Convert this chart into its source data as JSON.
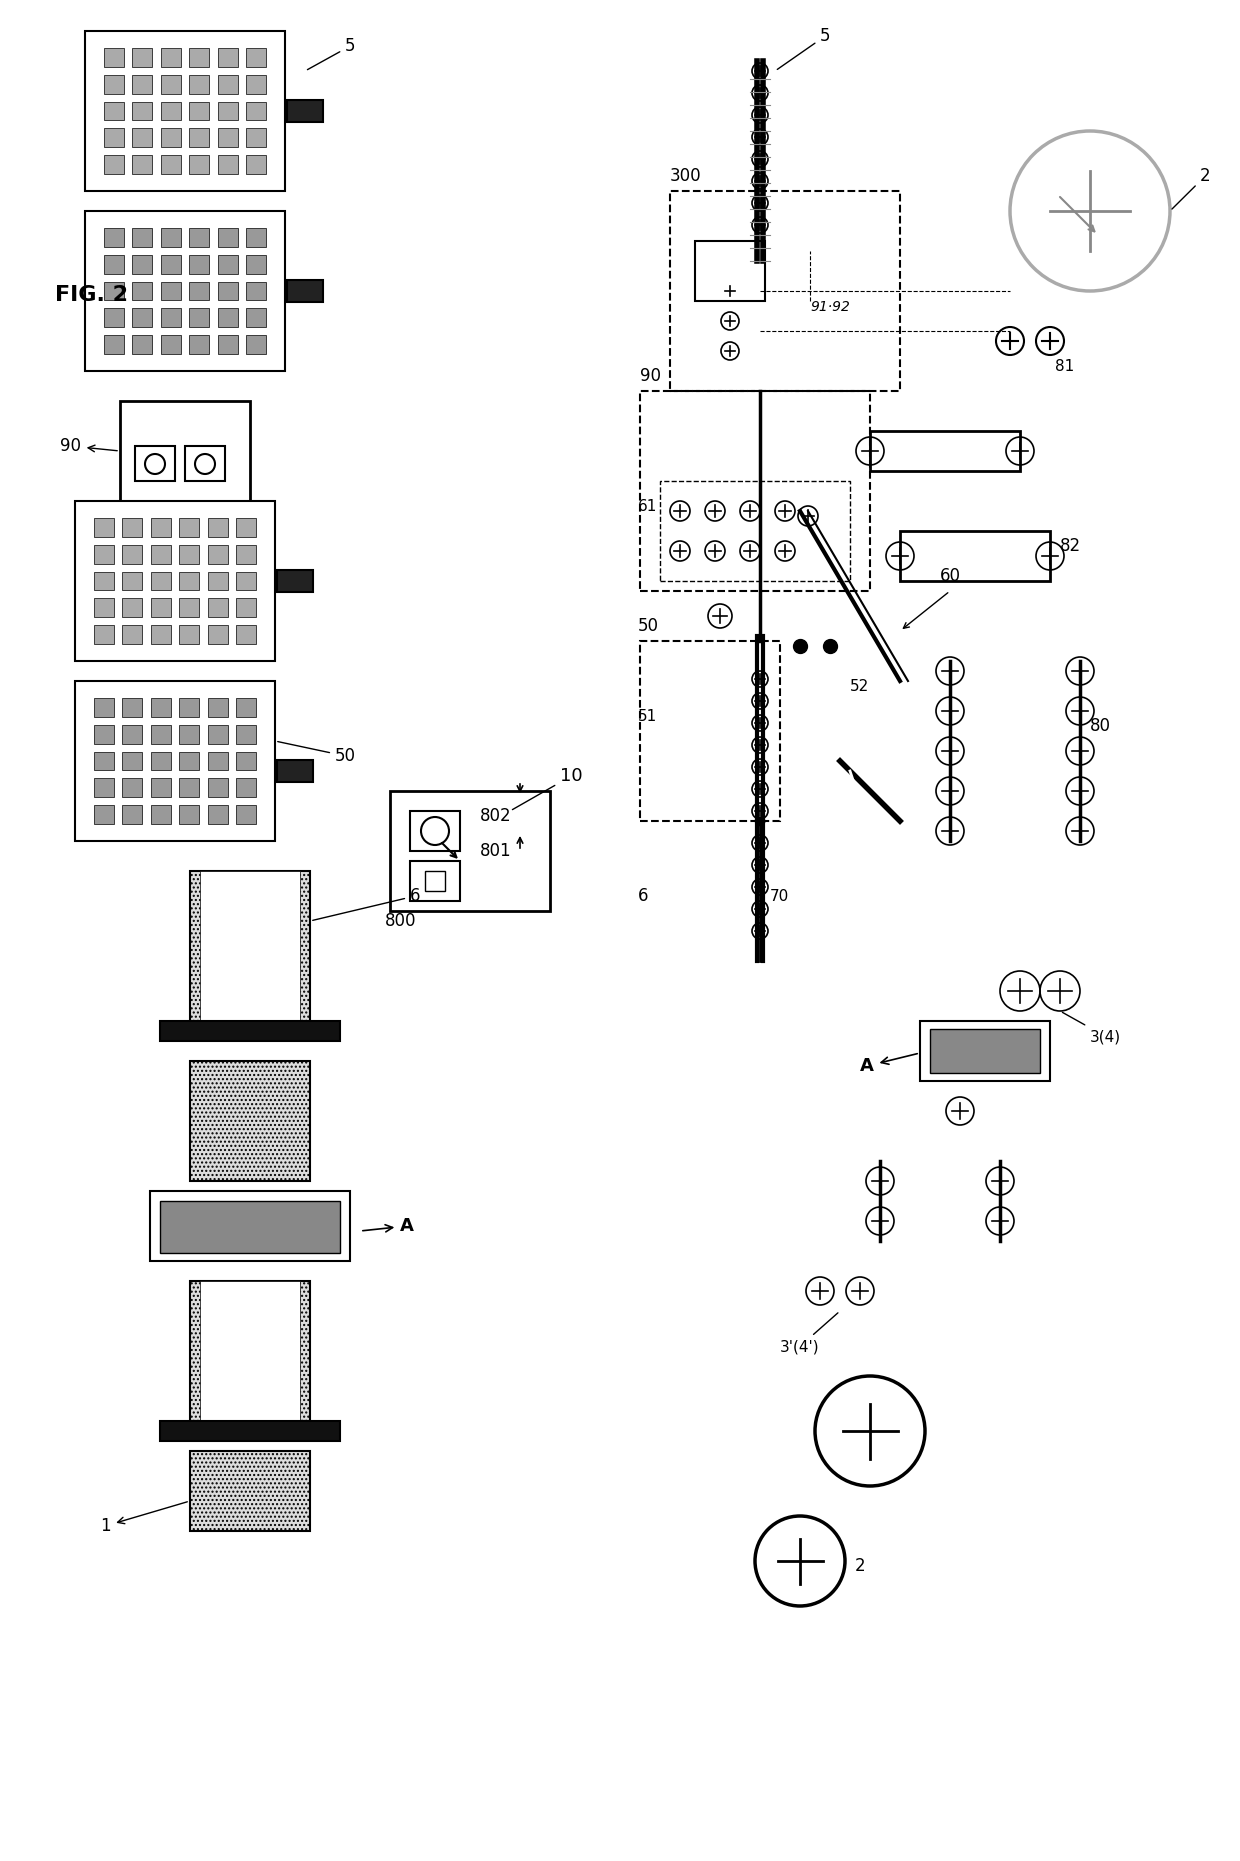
{
  "title": "FIG. 2",
  "bg_color": "#ffffff",
  "line_color": "#000000",
  "gray_color": "#888888",
  "light_gray": "#cccccc",
  "dark_gray": "#444444",
  "labels": {
    "fig": "FIG. 2",
    "1": "1",
    "2": "2",
    "3p": "3'(4')",
    "3": "3(4)",
    "5": "5",
    "6": "6",
    "10": "10",
    "50": "50",
    "51": "51",
    "52": "52",
    "60": "60",
    "61": "61",
    "70": "70",
    "80": "80",
    "81": "81",
    "82": "82",
    "90": "90",
    "91_92": "91.92",
    "300": "300",
    "800": "800",
    "801": "801",
    "802": "802",
    "A": "A"
  }
}
